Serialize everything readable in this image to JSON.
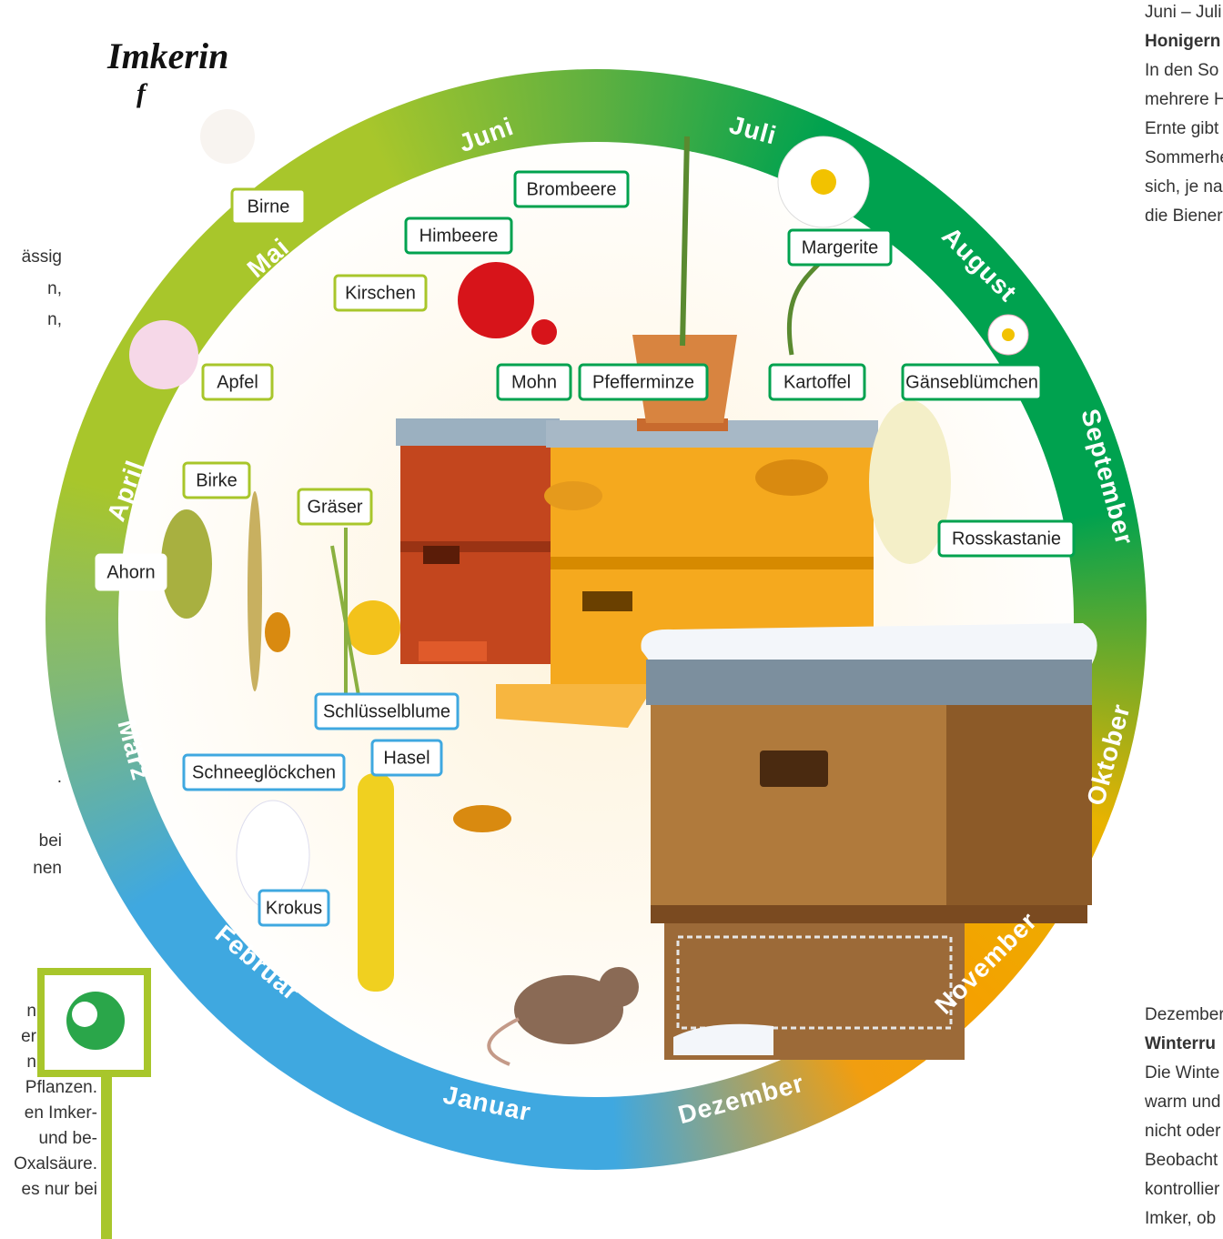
{
  "header": {
    "title": "Imkerin",
    "subtitle": "f"
  },
  "left_text": [
    "ässig",
    "n,",
    "n,",
    ".",
    "bei",
    "nen"
  ],
  "info_box": {
    "lines": [
      "n",
      "er",
      "n",
      "Pflanzen.",
      "en Imker-",
      "und be-",
      "Oxalsäure.",
      "es nur bei"
    ]
  },
  "right_top": {
    "lines": [
      "Juni – Juli",
      "Honigern",
      "In den So",
      "mehrere H",
      "Ernte gibt",
      "Sommerhe",
      "sich, je na",
      "die Biener"
    ]
  },
  "right_bottom": {
    "lines": [
      "Dezember",
      "Winterru",
      "Die Winte",
      "warm und",
      "nicht oder",
      "Beobacht",
      "kontrollier",
      "Imker, ob"
    ]
  },
  "months": [
    "Juni",
    "Juli",
    "August",
    "September",
    "Oktober",
    "November",
    "Dezember",
    "Januar",
    "Februar",
    "März",
    "April",
    "Mai"
  ],
  "plants": [
    "Birne",
    "Himbeere",
    "Brombeere",
    "Margerite",
    "Kirschen",
    "Mohn",
    "Pfefferminze",
    "Kartoffel",
    "Gänseblümchen",
    "Apfel",
    "Birke",
    "Gräser",
    "Rosskastanie",
    "Ahorn",
    "Schlüsselblume",
    "Hasel",
    "Schneeglöckchen",
    "Krokus"
  ]
}
